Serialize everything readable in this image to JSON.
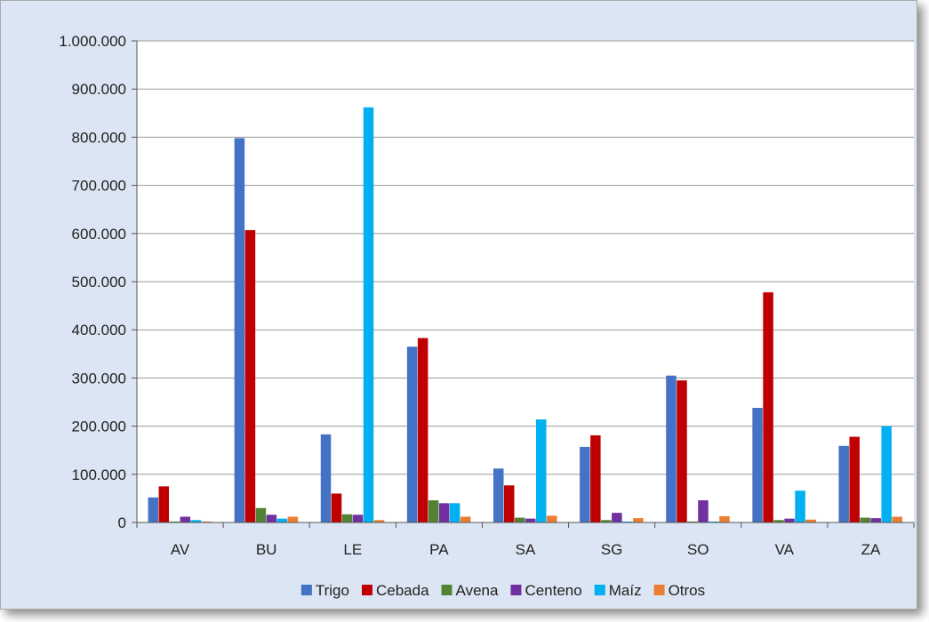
{
  "chart_data": {
    "type": "bar",
    "title": "",
    "xlabel": "",
    "ylabel": "",
    "ylim": [
      0,
      1000000
    ],
    "yticks": [
      0,
      100000,
      200000,
      300000,
      400000,
      500000,
      600000,
      700000,
      800000,
      900000,
      1000000
    ],
    "ytick_labels": [
      "0",
      "100.000",
      "200.000",
      "300.000",
      "400.000",
      "500.000",
      "600.000",
      "700.000",
      "800.000",
      "900.000",
      "1.000.000"
    ],
    "categories": [
      "AV",
      "BU",
      "LE",
      "PA",
      "SA",
      "SG",
      "SO",
      "VA",
      "ZA"
    ],
    "grid": "horizontal",
    "legend_position": "bottom",
    "series": [
      {
        "name": "Trigo",
        "color": "#4472c4",
        "values": [
          52000,
          798000,
          183000,
          365000,
          112000,
          157000,
          305000,
          238000,
          159000
        ]
      },
      {
        "name": "Cebada",
        "color": "#c00000",
        "values": [
          75000,
          607000,
          60000,
          383000,
          77000,
          181000,
          295000,
          478000,
          178000
        ]
      },
      {
        "name": "Avena",
        "color": "#548235",
        "values": [
          2000,
          30000,
          17000,
          46000,
          10000,
          5000,
          2000,
          5000,
          10000
        ]
      },
      {
        "name": "Centeno",
        "color": "#7030a0",
        "values": [
          12000,
          16000,
          16000,
          40000,
          8000,
          20000,
          46000,
          8000,
          9000
        ]
      },
      {
        "name": "Maíz",
        "color": "#00b0f0",
        "values": [
          5000,
          8000,
          862000,
          40000,
          214000,
          2000,
          2000,
          66000,
          200000
        ]
      },
      {
        "name": "Otros",
        "color": "#ed7d31",
        "values": [
          2000,
          12000,
          5000,
          12000,
          14000,
          9000,
          13000,
          6000,
          12000
        ]
      }
    ]
  }
}
